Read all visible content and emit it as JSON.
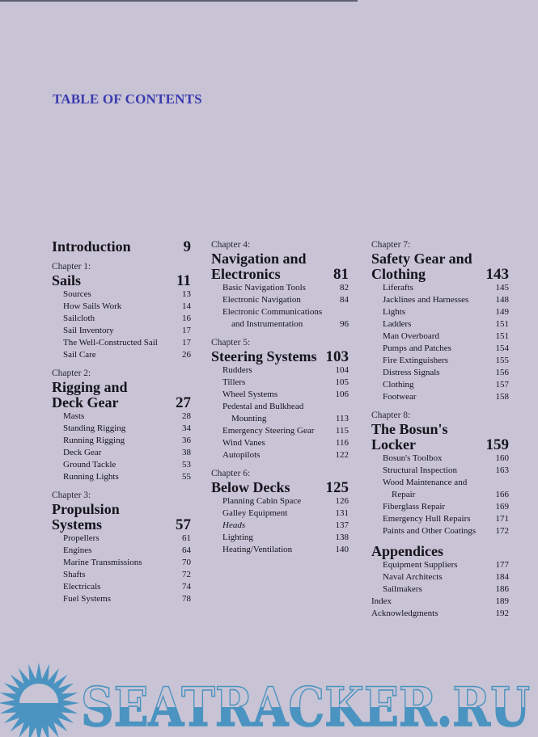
{
  "title": "TABLE OF CONTENTS",
  "colors": {
    "title": "#3b3bb0",
    "background": "#c8c4d5",
    "watermark": "#4b93c0"
  },
  "columns": [
    [
      {
        "chapter": "",
        "title": [
          "Introduction"
        ],
        "page": "9",
        "items": []
      },
      {
        "chapter": "Chapter 1:",
        "title": [
          "Sails"
        ],
        "page": "11",
        "items": [
          {
            "label": "Sources",
            "page": "13"
          },
          {
            "label": "How Sails Work",
            "page": "14"
          },
          {
            "label": "Sailcloth",
            "page": "16"
          },
          {
            "label": "Sail Inventory",
            "page": "17"
          },
          {
            "label": "The Well-Constructed Sail",
            "page": "17"
          },
          {
            "label": "Sail Care",
            "page": "26"
          }
        ]
      },
      {
        "chapter": "Chapter 2:",
        "title": [
          "Rigging and",
          "Deck Gear"
        ],
        "page": "27",
        "items": [
          {
            "label": "Masts",
            "page": "28"
          },
          {
            "label": "Standing Rigging",
            "page": "34"
          },
          {
            "label": "Running Rigging",
            "page": "36"
          },
          {
            "label": "Deck Gear",
            "page": "38"
          },
          {
            "label": "Ground Tackle",
            "page": "53"
          },
          {
            "label": "Running Lights",
            "page": "55"
          }
        ]
      },
      {
        "chapter": "Chapter 3:",
        "title": [
          "Propulsion",
          "Systems"
        ],
        "page": "57",
        "items": [
          {
            "label": "Propellers",
            "page": "61"
          },
          {
            "label": "Engines",
            "page": "64"
          },
          {
            "label": "Marine Transmissions",
            "page": "70"
          },
          {
            "label": "Shafts",
            "page": "72"
          },
          {
            "label": "Electricals",
            "page": "74"
          },
          {
            "label": "Fuel Systems",
            "page": "78"
          }
        ]
      }
    ],
    [
      {
        "chapter": "Chapter 4:",
        "title": [
          "Navigation and",
          "Electronics"
        ],
        "page": "81",
        "items": [
          {
            "label": "Basic Navigation Tools",
            "page": "82"
          },
          {
            "label": "Electronic Navigation",
            "page": "84"
          },
          {
            "label": "Electronic Communications",
            "page": ""
          },
          {
            "label": "and Instrumentation",
            "page": "96",
            "indent": true
          }
        ]
      },
      {
        "chapter": "Chapter 5:",
        "title": [
          "Steering Systems"
        ],
        "page": "103",
        "items": [
          {
            "label": "Rudders",
            "page": "104"
          },
          {
            "label": "Tillers",
            "page": "105"
          },
          {
            "label": "Wheel Systems",
            "page": "106"
          },
          {
            "label": "Pedestal and Bulkhead",
            "page": ""
          },
          {
            "label": "Mounting",
            "page": "113",
            "indent": true
          },
          {
            "label": "Emergency Steering Gear",
            "page": "115"
          },
          {
            "label": "Wind Vanes",
            "page": "116"
          },
          {
            "label": "Autopilots",
            "page": "122"
          }
        ]
      },
      {
        "chapter": "Chapter 6:",
        "title": [
          "Below Decks"
        ],
        "page": "125",
        "items": [
          {
            "label": "Planning Cabin Space",
            "page": "126"
          },
          {
            "label": "Galley Equipment",
            "page": "131"
          },
          {
            "label": "Heads",
            "page": "137",
            "italic": true
          },
          {
            "label": "Lighting",
            "page": "138"
          },
          {
            "label": "Heating/Ventilation",
            "page": "140"
          }
        ]
      }
    ],
    [
      {
        "chapter": "Chapter 7:",
        "title": [
          "Safety Gear and",
          "Clothing"
        ],
        "page": "143",
        "items": [
          {
            "label": "Liferafts",
            "page": "145"
          },
          {
            "label": "Jacklines and Harnesses",
            "page": "148"
          },
          {
            "label": "Lights",
            "page": "149"
          },
          {
            "label": "Ladders",
            "page": "151"
          },
          {
            "label": "Man Overboard",
            "page": "151"
          },
          {
            "label": "Pumps and Patches",
            "page": "154"
          },
          {
            "label": "Fire Extinguishers",
            "page": "155"
          },
          {
            "label": "Distress Signals",
            "page": "156"
          },
          {
            "label": "Clothing",
            "page": "157"
          },
          {
            "label": "Footwear",
            "page": "158"
          }
        ]
      },
      {
        "chapter": "Chapter 8:",
        "title": [
          "The Bosun's",
          "Locker"
        ],
        "page": "159",
        "items": [
          {
            "label": "Bosun's Toolbox",
            "page": "160"
          },
          {
            "label": "Structural Inspection",
            "page": "163"
          },
          {
            "label": "Wood Maintenance and",
            "page": ""
          },
          {
            "label": "Repair",
            "page": "166",
            "indent": true
          },
          {
            "label": "Fiberglass Repair",
            "page": "169"
          },
          {
            "label": "Emergency Hull Repairs",
            "page": "171"
          },
          {
            "label": "Paints and Other Coatings",
            "page": "172"
          }
        ]
      },
      {
        "chapter": "",
        "title": [
          "Appendices"
        ],
        "page": "",
        "items": [
          {
            "label": "Equipment Suppliers",
            "page": "177"
          },
          {
            "label": "Naval Architects",
            "page": "184"
          },
          {
            "label": "Sailmakers",
            "page": "186"
          },
          {
            "label": "Index",
            "page": "189",
            "flush": true
          },
          {
            "label": "Acknowledgments",
            "page": "192",
            "flush": true
          }
        ]
      }
    ]
  ],
  "watermark": {
    "text": "SEATRACKER.RU",
    "icon": "sun-over-water-icon"
  }
}
